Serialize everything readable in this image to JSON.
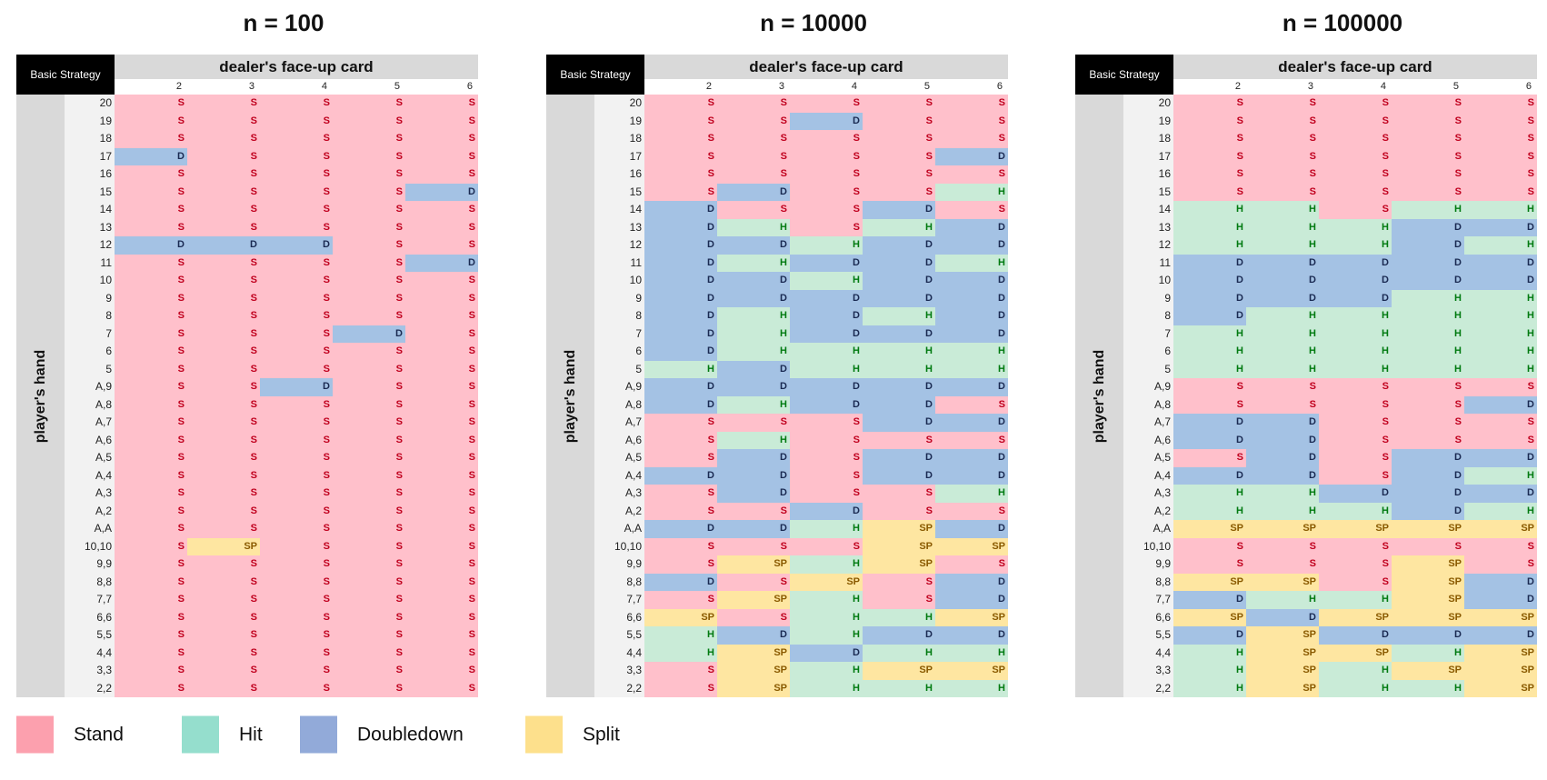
{
  "colors": {
    "S": "#ffc0cb",
    "H": "#c9ebd7",
    "D": "#a4c2e4",
    "SP": "#fee6a1",
    "text_S": "#c0001e",
    "text_H": "#007a10",
    "text_D": "#1a2a52",
    "text_SP": "#8a5a00"
  },
  "legend": [
    {
      "key": "S",
      "label": "Stand",
      "color": "#fca0ae"
    },
    {
      "key": "H",
      "label": "Hit",
      "color": "#95decd"
    },
    {
      "key": "D",
      "label": "Doubledown",
      "color": "#92aad9"
    },
    {
      "key": "SP",
      "label": "Split",
      "color": "#fde08c"
    }
  ],
  "chart_data": {
    "type": "table",
    "corner_label": "Basic Strategy",
    "column_header": "dealer's face-up card",
    "row_header": "player's hand",
    "columns": [
      "2",
      "3",
      "4",
      "5",
      "6"
    ],
    "rows": [
      "20",
      "19",
      "18",
      "17",
      "16",
      "15",
      "14",
      "13",
      "12",
      "11",
      "10",
      "9",
      "8",
      "7",
      "6",
      "5",
      "A,9",
      "A,8",
      "A,7",
      "A,6",
      "A,5",
      "A,4",
      "A,3",
      "A,2",
      "A,A",
      "10,10",
      "9,9",
      "8,8",
      "7,7",
      "6,6",
      "5,5",
      "4,4",
      "3,3",
      "2,2"
    ],
    "panels": [
      {
        "title": "n = 100",
        "grid": [
          [
            "S",
            "S",
            "S",
            "S",
            "S"
          ],
          [
            "S",
            "S",
            "S",
            "S",
            "S"
          ],
          [
            "S",
            "S",
            "S",
            "S",
            "S"
          ],
          [
            "D",
            "S",
            "S",
            "S",
            "S"
          ],
          [
            "S",
            "S",
            "S",
            "S",
            "S"
          ],
          [
            "S",
            "S",
            "S",
            "S",
            "D"
          ],
          [
            "S",
            "S",
            "S",
            "S",
            "S"
          ],
          [
            "S",
            "S",
            "S",
            "S",
            "S"
          ],
          [
            "D",
            "D",
            "D",
            "S",
            "S"
          ],
          [
            "S",
            "S",
            "S",
            "S",
            "D"
          ],
          [
            "S",
            "S",
            "S",
            "S",
            "S"
          ],
          [
            "S",
            "S",
            "S",
            "S",
            "S"
          ],
          [
            "S",
            "S",
            "S",
            "S",
            "S"
          ],
          [
            "S",
            "S",
            "S",
            "D",
            "S"
          ],
          [
            "S",
            "S",
            "S",
            "S",
            "S"
          ],
          [
            "S",
            "S",
            "S",
            "S",
            "S"
          ],
          [
            "S",
            "S",
            "D",
            "S",
            "S"
          ],
          [
            "S",
            "S",
            "S",
            "S",
            "S"
          ],
          [
            "S",
            "S",
            "S",
            "S",
            "S"
          ],
          [
            "S",
            "S",
            "S",
            "S",
            "S"
          ],
          [
            "S",
            "S",
            "S",
            "S",
            "S"
          ],
          [
            "S",
            "S",
            "S",
            "S",
            "S"
          ],
          [
            "S",
            "S",
            "S",
            "S",
            "S"
          ],
          [
            "S",
            "S",
            "S",
            "S",
            "S"
          ],
          [
            "S",
            "S",
            "S",
            "S",
            "S"
          ],
          [
            "S",
            "SP",
            "S",
            "S",
            "S"
          ],
          [
            "S",
            "S",
            "S",
            "S",
            "S"
          ],
          [
            "S",
            "S",
            "S",
            "S",
            "S"
          ],
          [
            "S",
            "S",
            "S",
            "S",
            "S"
          ],
          [
            "S",
            "S",
            "S",
            "S",
            "S"
          ],
          [
            "S",
            "S",
            "S",
            "S",
            "S"
          ],
          [
            "S",
            "S",
            "S",
            "S",
            "S"
          ],
          [
            "S",
            "S",
            "S",
            "S",
            "S"
          ],
          [
            "S",
            "S",
            "S",
            "S",
            "S"
          ]
        ]
      },
      {
        "title": "n = 10000",
        "grid": [
          [
            "S",
            "S",
            "S",
            "S",
            "S"
          ],
          [
            "S",
            "S",
            "D",
            "S",
            "S"
          ],
          [
            "S",
            "S",
            "S",
            "S",
            "S"
          ],
          [
            "S",
            "S",
            "S",
            "S",
            "D"
          ],
          [
            "S",
            "S",
            "S",
            "S",
            "S"
          ],
          [
            "S",
            "D",
            "S",
            "S",
            "H"
          ],
          [
            "D",
            "S",
            "S",
            "D",
            "S"
          ],
          [
            "D",
            "H",
            "S",
            "H",
            "D"
          ],
          [
            "D",
            "D",
            "H",
            "D",
            "D"
          ],
          [
            "D",
            "H",
            "D",
            "D",
            "H"
          ],
          [
            "D",
            "D",
            "H",
            "D",
            "D"
          ],
          [
            "D",
            "D",
            "D",
            "D",
            "D"
          ],
          [
            "D",
            "H",
            "D",
            "H",
            "D"
          ],
          [
            "D",
            "H",
            "D",
            "D",
            "D"
          ],
          [
            "D",
            "H",
            "H",
            "H",
            "H"
          ],
          [
            "H",
            "D",
            "H",
            "H",
            "H"
          ],
          [
            "D",
            "D",
            "D",
            "D",
            "D"
          ],
          [
            "D",
            "H",
            "D",
            "D",
            "S"
          ],
          [
            "S",
            "S",
            "S",
            "D",
            "D"
          ],
          [
            "S",
            "H",
            "S",
            "S",
            "S"
          ],
          [
            "S",
            "D",
            "S",
            "D",
            "D"
          ],
          [
            "D",
            "D",
            "S",
            "D",
            "D"
          ],
          [
            "S",
            "D",
            "S",
            "S",
            "H"
          ],
          [
            "S",
            "S",
            "D",
            "S",
            "S"
          ],
          [
            "D",
            "D",
            "H",
            "SP",
            "D"
          ],
          [
            "S",
            "S",
            "S",
            "SP",
            "SP"
          ],
          [
            "S",
            "SP",
            "H",
            "SP",
            "S"
          ],
          [
            "D",
            "S",
            "SP",
            "S",
            "D"
          ],
          [
            "S",
            "SP",
            "H",
            "S",
            "D"
          ],
          [
            "SP",
            "S",
            "H",
            "H",
            "SP"
          ],
          [
            "H",
            "D",
            "H",
            "D",
            "D"
          ],
          [
            "H",
            "SP",
            "D",
            "H",
            "H"
          ],
          [
            "S",
            "SP",
            "H",
            "SP",
            "SP"
          ],
          [
            "S",
            "SP",
            "H",
            "H",
            "H"
          ]
        ]
      },
      {
        "title": "n = 100000",
        "grid": [
          [
            "S",
            "S",
            "S",
            "S",
            "S"
          ],
          [
            "S",
            "S",
            "S",
            "S",
            "S"
          ],
          [
            "S",
            "S",
            "S",
            "S",
            "S"
          ],
          [
            "S",
            "S",
            "S",
            "S",
            "S"
          ],
          [
            "S",
            "S",
            "S",
            "S",
            "S"
          ],
          [
            "S",
            "S",
            "S",
            "S",
            "S"
          ],
          [
            "H",
            "H",
            "S",
            "H",
            "H"
          ],
          [
            "H",
            "H",
            "H",
            "D",
            "D"
          ],
          [
            "H",
            "H",
            "H",
            "D",
            "H"
          ],
          [
            "D",
            "D",
            "D",
            "D",
            "D"
          ],
          [
            "D",
            "D",
            "D",
            "D",
            "D"
          ],
          [
            "D",
            "D",
            "D",
            "H",
            "H"
          ],
          [
            "D",
            "H",
            "H",
            "H",
            "H"
          ],
          [
            "H",
            "H",
            "H",
            "H",
            "H"
          ],
          [
            "H",
            "H",
            "H",
            "H",
            "H"
          ],
          [
            "H",
            "H",
            "H",
            "H",
            "H"
          ],
          [
            "S",
            "S",
            "S",
            "S",
            "S"
          ],
          [
            "S",
            "S",
            "S",
            "S",
            "D"
          ],
          [
            "D",
            "D",
            "S",
            "S",
            "S"
          ],
          [
            "D",
            "D",
            "S",
            "S",
            "S"
          ],
          [
            "S",
            "D",
            "S",
            "D",
            "D"
          ],
          [
            "D",
            "D",
            "S",
            "D",
            "H"
          ],
          [
            "H",
            "H",
            "D",
            "D",
            "D"
          ],
          [
            "H",
            "H",
            "H",
            "D",
            "H"
          ],
          [
            "SP",
            "SP",
            "SP",
            "SP",
            "SP"
          ],
          [
            "S",
            "S",
            "S",
            "S",
            "S"
          ],
          [
            "S",
            "S",
            "S",
            "SP",
            "S"
          ],
          [
            "SP",
            "SP",
            "S",
            "SP",
            "D"
          ],
          [
            "D",
            "H",
            "H",
            "SP",
            "D"
          ],
          [
            "SP",
            "D",
            "SP",
            "SP",
            "SP"
          ],
          [
            "D",
            "SP",
            "D",
            "D",
            "D"
          ],
          [
            "H",
            "SP",
            "SP",
            "H",
            "SP"
          ],
          [
            "H",
            "SP",
            "H",
            "SP",
            "SP"
          ],
          [
            "H",
            "SP",
            "H",
            "H",
            "SP"
          ]
        ]
      }
    ]
  }
}
